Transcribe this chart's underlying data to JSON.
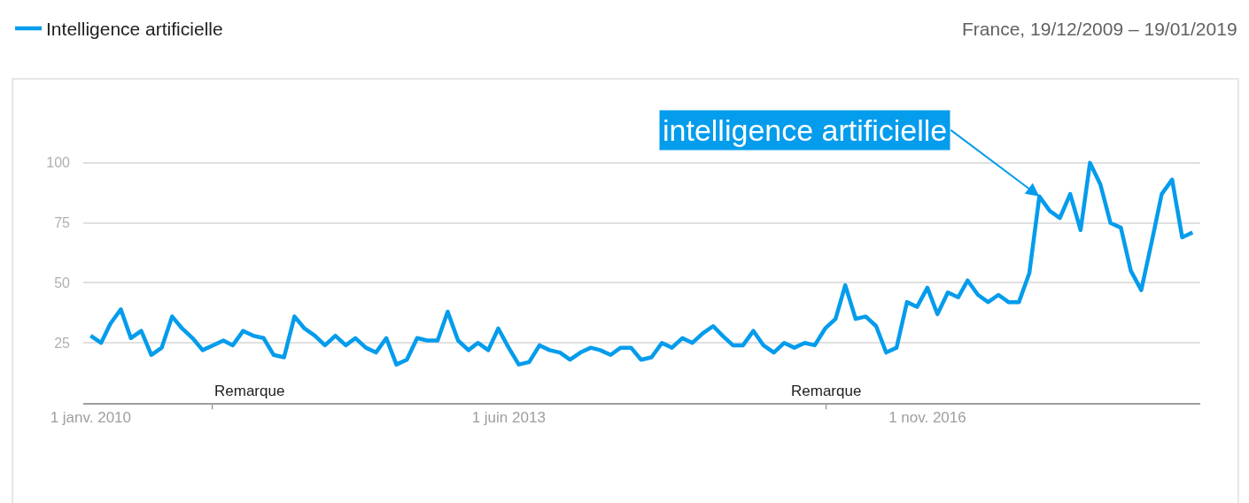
{
  "chart_data": {
    "type": "line",
    "subtitle": "France, 19/12/2009 – 19/01/2019",
    "x": [
      "2010-01",
      "2010-02",
      "2010-03",
      "2010-04",
      "2010-05",
      "2010-06",
      "2010-07",
      "2010-08",
      "2010-09",
      "2010-10",
      "2010-11",
      "2010-12",
      "2011-01",
      "2011-02",
      "2011-03",
      "2011-04",
      "2011-05",
      "2011-06",
      "2011-07",
      "2011-08",
      "2011-09",
      "2011-10",
      "2011-11",
      "2011-12",
      "2012-01",
      "2012-02",
      "2012-03",
      "2012-04",
      "2012-05",
      "2012-06",
      "2012-07",
      "2012-08",
      "2012-09",
      "2012-10",
      "2012-11",
      "2012-12",
      "2013-01",
      "2013-02",
      "2013-03",
      "2013-04",
      "2013-05",
      "2013-06",
      "2013-07",
      "2013-08",
      "2013-09",
      "2013-10",
      "2013-11",
      "2013-12",
      "2014-01",
      "2014-02",
      "2014-03",
      "2014-04",
      "2014-05",
      "2014-06",
      "2014-07",
      "2014-08",
      "2014-09",
      "2014-10",
      "2014-11",
      "2014-12",
      "2015-01",
      "2015-02",
      "2015-03",
      "2015-04",
      "2015-05",
      "2015-06",
      "2015-07",
      "2015-08",
      "2015-09",
      "2015-10",
      "2015-11",
      "2015-12",
      "2016-01",
      "2016-02",
      "2016-03",
      "2016-04",
      "2016-05",
      "2016-06",
      "2016-07",
      "2016-08",
      "2016-09",
      "2016-10",
      "2016-11",
      "2016-12",
      "2017-01",
      "2017-02",
      "2017-03",
      "2017-04",
      "2017-05",
      "2017-06",
      "2017-07",
      "2017-08",
      "2017-09",
      "2017-10",
      "2017-11",
      "2017-12",
      "2018-01",
      "2018-02",
      "2018-03",
      "2018-04",
      "2018-05",
      "2018-06",
      "2018-07",
      "2018-08",
      "2018-09",
      "2018-10",
      "2018-11",
      "2018-12",
      "2019-01"
    ],
    "series": [
      {
        "name": "Intelligence artificielle",
        "color": "#049cec",
        "values": [
          28,
          25,
          33,
          39,
          27,
          30,
          20,
          23,
          36,
          31,
          27,
          22,
          24,
          26,
          24,
          30,
          28,
          27,
          20,
          19,
          36,
          31,
          28,
          24,
          28,
          24,
          27,
          23,
          21,
          27,
          16,
          18,
          27,
          26,
          26,
          38,
          26,
          22,
          25,
          22,
          31,
          23,
          16,
          17,
          24,
          22,
          21,
          18,
          21,
          23,
          22,
          20,
          23,
          23,
          18,
          19,
          25,
          23,
          27,
          25,
          29,
          32,
          28,
          24,
          24,
          30,
          24,
          21,
          25,
          23,
          25,
          24,
          31,
          35,
          49,
          35,
          36,
          32,
          21,
          23,
          42,
          40,
          48,
          37,
          46,
          44,
          51,
          45,
          42,
          45,
          42,
          42,
          54,
          86,
          80,
          77,
          87,
          72,
          100,
          91,
          75,
          73,
          55,
          47,
          67,
          87,
          93,
          69,
          71
        ]
      }
    ],
    "xlim": [
      "2009-12-10",
      "2019-01-24"
    ],
    "xticks": [
      {
        "value": "2010-01-01",
        "label": "1 janv. 2010"
      },
      {
        "value": "2013-06-01",
        "label": "1 juin 2013"
      },
      {
        "value": "2016-11-01",
        "label": "1 nov. 2016"
      }
    ],
    "ylim": [
      0,
      135
    ],
    "yticks": [
      25,
      50,
      75,
      100
    ],
    "grid": "y",
    "legend": "top left",
    "marker": "none",
    "line_style": "solid",
    "annotations": [
      {
        "text": "intelligence artificielle",
        "x": "2017-10",
        "y": 86
      },
      "Remarque",
      "Remarque"
    ]
  }
}
